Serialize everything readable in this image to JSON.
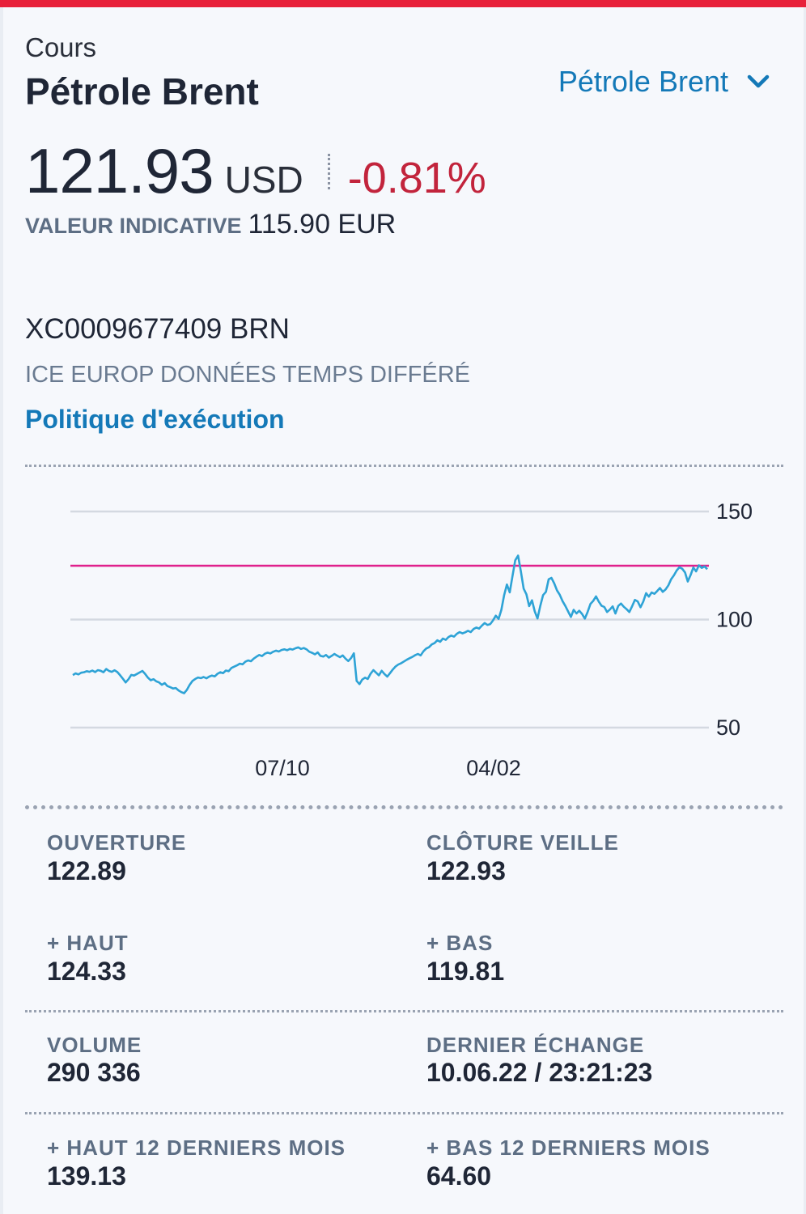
{
  "header": {
    "section_label": "Cours",
    "title": "Pétrole Brent",
    "selector_label": "Pétrole Brent"
  },
  "quote": {
    "price": "121.93",
    "currency": "USD",
    "change_pct": "-0.81%",
    "indicative_label": "VALEUR INDICATIVE",
    "indicative_value": "115.90 EUR"
  },
  "instrument": {
    "isin_line": "XC0009677409 BRN",
    "market_line": "ICE EUROP DONNÉES TEMPS DIFFÉRÉ",
    "policy_link": "Politique d'exécution"
  },
  "colors": {
    "accent": "#1479b8",
    "negative": "#c2243c",
    "top_bar": "#e8203a",
    "series_line": "#2ea3d6",
    "reference_line": "#e0208c"
  },
  "chart_data": {
    "type": "line",
    "y_ticks": [
      "150",
      "100",
      "50"
    ],
    "x_ticks": [
      "07/10",
      "04/02"
    ],
    "ylim": [
      50,
      150
    ],
    "grid": true,
    "reference_line": 124.9,
    "series": [
      {
        "values": [
          74.3,
          75.1,
          74.6,
          75.4,
          75.6,
          76.1,
          75.8,
          76.4,
          75.7,
          76.6,
          76.3,
          75.6,
          77.1,
          76.2,
          75.8,
          76.5,
          75.7,
          74.2,
          72.6,
          70.9,
          72.4,
          74.4,
          74.1,
          74.8,
          75.5,
          76.2,
          74.8,
          73.1,
          71.9,
          72.4,
          71.4,
          70.9,
          69.8,
          70.6,
          69.2,
          68.7,
          68.1,
          68.3,
          67.2,
          66.4,
          65.9,
          67.5,
          69.8,
          71.6,
          72.5,
          73.2,
          72.9,
          73.4,
          72.8,
          73.6,
          74.1,
          73.7,
          74.9,
          75.6,
          75.2,
          76.4,
          76.1,
          77.6,
          78.2,
          78.8,
          79.6,
          79.3,
          80.5,
          81.1,
          80.7,
          81.9,
          82.8,
          83.6,
          83.1,
          84.2,
          84.7,
          84.3,
          85.1,
          85.6,
          85.2,
          85.9,
          86.2,
          85.8,
          86.4,
          86.1,
          86.7,
          87.1,
          86.4,
          86.8,
          86.2,
          85.1,
          84.6,
          83.9,
          84.8,
          83.2,
          82.9,
          83.6,
          82.4,
          83.2,
          84.1,
          83.3,
          82.6,
          83.4,
          81.9,
          80.8,
          82.2,
          84.4,
          71.6,
          70.1,
          72.2,
          73.1,
          72.5,
          74.9,
          76.6,
          75.4,
          74.2,
          76.3,
          74.8,
          73.6,
          75.2,
          76.9,
          78.3,
          79.2,
          79.8,
          80.6,
          81.4,
          82.1,
          82.7,
          83.5,
          84.1,
          83.4,
          85.3,
          86.6,
          87.2,
          88.5,
          89.1,
          90.4,
          89.7,
          91.2,
          90.6,
          91.9,
          92.6,
          92.1,
          93.4,
          94.2,
          93.6,
          94.1,
          94.8,
          94.2,
          95.6,
          96.3,
          95.8,
          97.2,
          98.4,
          97.5,
          97.9,
          99.6,
          101.8,
          100.3,
          104.4,
          111.3,
          116.2,
          112.6,
          120.1,
          127.4,
          129.6,
          122.4,
          114.3,
          111.7,
          106.2,
          108.9,
          103.8,
          100.5,
          106.4,
          111.3,
          112.8,
          118.6,
          119.3,
          116.7,
          113.5,
          111.4,
          108.5,
          106.3,
          103.7,
          101.2,
          104.5,
          102.8,
          104.1,
          102.6,
          100.4,
          103.5,
          107.2,
          108.6,
          110.7,
          108.3,
          106.4,
          105.8,
          103.5,
          104.6,
          106.1,
          102.8,
          106.3,
          107.4,
          105.9,
          104.8,
          103.5,
          106.2,
          109.1,
          108.4,
          105.7,
          108.3,
          112.2,
          110.6,
          112.5,
          111.9,
          113.2,
          114.6,
          112.8,
          113.9,
          115.8,
          118.6,
          120.4,
          122.7,
          124.2,
          123.5,
          121.8,
          117.6,
          120.6,
          124.1,
          122.3,
          125.1,
          123.9,
          124.6,
          123.3
        ]
      }
    ]
  },
  "stats": {
    "open_label": "OUVERTURE",
    "open_value": "122.89",
    "prev_close_label": "CLÔTURE VEILLE",
    "prev_close_value": "122.93",
    "high_label": "+ HAUT",
    "high_value": "124.33",
    "low_label": "+ BAS",
    "low_value": "119.81",
    "volume_label": "VOLUME",
    "volume_value": "290 336",
    "last_trade_label": "DERNIER ÉCHANGE",
    "last_trade_value": "10.06.22 / 23:21:23",
    "high_12m_label": "+ HAUT 12 DERNIERS MOIS",
    "high_12m_value": "139.13",
    "low_12m_label": "+ BAS 12 DERNIERS MOIS",
    "low_12m_value": "64.60"
  }
}
